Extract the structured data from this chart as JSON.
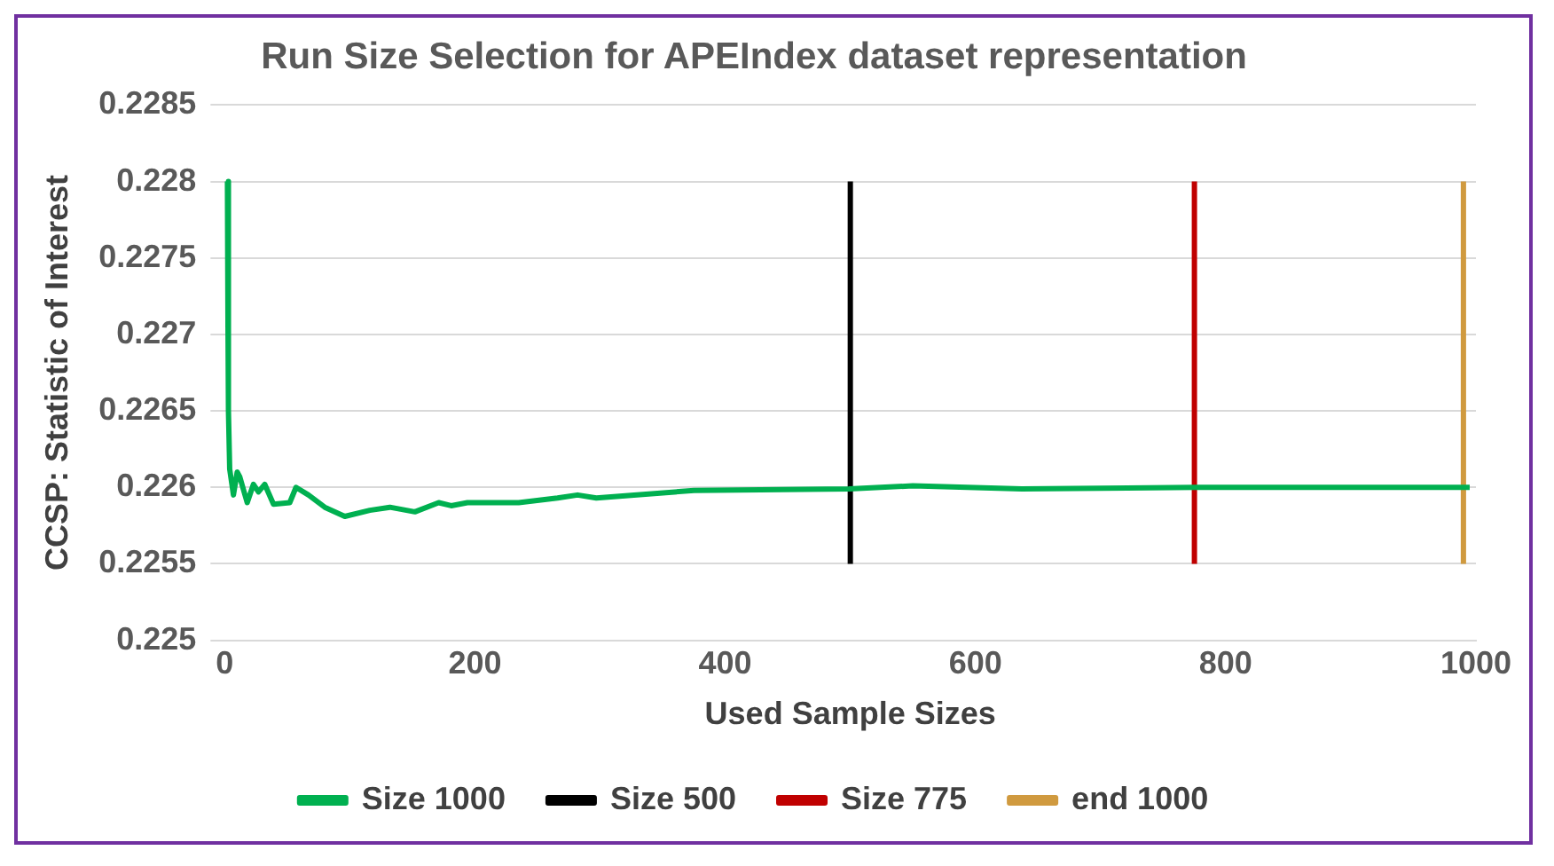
{
  "chart_data": {
    "type": "line",
    "title": "Run Size Selection for APEIndex dataset representation",
    "xlabel": "Used Sample Sizes",
    "ylabel": "CCSP: Statistic of Interest",
    "xlim": [
      0,
      1000
    ],
    "xticks": [
      0,
      200,
      400,
      600,
      800,
      1000
    ],
    "ylim": [
      0.225,
      0.2285
    ],
    "yticks": [
      0.225,
      0.2255,
      0.226,
      0.2265,
      0.227,
      0.2275,
      0.228,
      0.2285
    ],
    "grid": "y",
    "legend": "bottom",
    "marker": "none",
    "line_style": "solid",
    "series": [
      {
        "name": "Size 1000",
        "color": "#00b050",
        "x": [
          2,
          3,
          4,
          7,
          10,
          12,
          18,
          23,
          27,
          32,
          39,
          52,
          57,
          67,
          80,
          96,
          116,
          132,
          152,
          171,
          181,
          194,
          235,
          266,
          282,
          297,
          375,
          499,
          550,
          637,
          776,
          843,
          995
        ],
        "values": [
          0.228,
          0.2265,
          0.22612,
          0.22595,
          0.2261,
          0.22607,
          0.2259,
          0.22602,
          0.22597,
          0.22602,
          0.22589,
          0.2259,
          0.226,
          0.22595,
          0.22587,
          0.22581,
          0.22585,
          0.22587,
          0.22584,
          0.2259,
          0.22588,
          0.2259,
          0.2259,
          0.22593,
          0.22595,
          0.22593,
          0.22598,
          0.22599,
          0.22601,
          0.22599,
          0.226,
          0.226,
          0.226
        ]
      },
      {
        "name": "Size 500",
        "color": "#000000",
        "x": [
          500,
          500
        ],
        "values": [
          0.2255,
          0.228
        ]
      },
      {
        "name": "Size 775",
        "color": "#c00000",
        "x": [
          775,
          775
        ],
        "values": [
          0.2255,
          0.228
        ]
      },
      {
        "name": "end 1000",
        "color": "#d09a3f",
        "x": [
          990,
          990
        ],
        "values": [
          0.2255,
          0.228
        ]
      }
    ]
  }
}
